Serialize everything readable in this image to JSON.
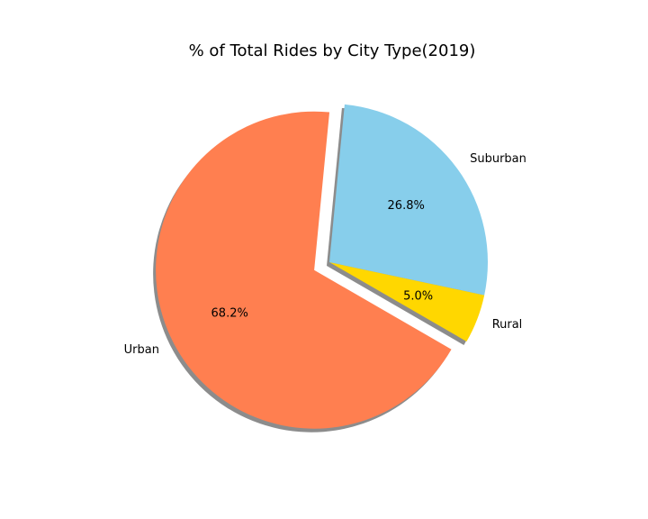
{
  "chart_data": {
    "type": "pie",
    "title": "% of Total Rides by City Type(2019)",
    "slices": [
      {
        "label": "Rural",
        "value": 5.0,
        "pct_label": "5.0%",
        "color": "#FFD700",
        "explode": false
      },
      {
        "label": "Suburban",
        "value": 26.8,
        "pct_label": "26.8%",
        "color": "#87CEEB",
        "explode": false
      },
      {
        "label": "Urban",
        "value": 68.2,
        "pct_label": "68.2%",
        "color": "#FF7F50",
        "explode": true
      }
    ],
    "shadow": true
  }
}
